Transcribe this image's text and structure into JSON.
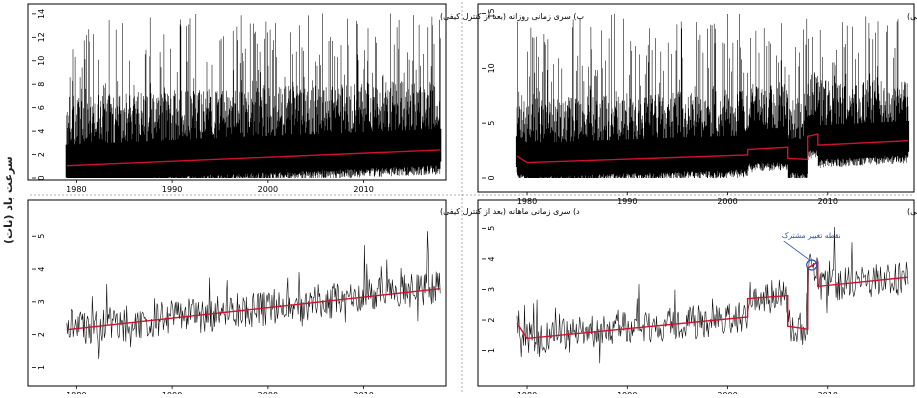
{
  "figure": {
    "ylabel": "سرعت باد (نات)"
  },
  "chart_data": [
    {
      "id": "b",
      "type": "line",
      "title": "ب) سری زمانی روزانه (بعد از کنترل کیفی)",
      "xlim": [
        1978.5,
        2018.5
      ],
      "ylim": [
        0,
        14.5
      ],
      "xticks": [
        1980,
        1990,
        2000,
        2010
      ],
      "yticks": [
        0,
        2,
        4,
        6,
        8,
        10,
        12,
        14
      ],
      "series": [
        {
          "kind": "daily",
          "color": "#000000",
          "x": [
            1979,
            2018
          ],
          "base_mean": 1.1,
          "base_end": 2.4,
          "y_max": 14.2
        },
        {
          "kind": "trend",
          "color": "#d01030",
          "x": [
            1979,
            2018
          ],
          "y": [
            1.05,
            2.4
          ]
        }
      ],
      "annotations": []
    },
    {
      "id": "alef",
      "type": "line",
      "title": "الف) سری زمانی روزانه (قبل از کنترل کیفی)",
      "xlim": [
        1978.5,
        2018.5
      ],
      "ylim": [
        0,
        15.5
      ],
      "xticks": [
        1980,
        1990,
        2000,
        2010
      ],
      "yticks": [
        0,
        5,
        10,
        15
      ],
      "series": [
        {
          "kind": "daily",
          "color": "#000000",
          "x": [
            1979,
            2018
          ],
          "y_max": 15
        },
        {
          "kind": "trend",
          "color": "#d01030",
          "x": [
            1979,
            1980,
            1980,
            2002,
            2002,
            2006,
            2006,
            2008,
            2008,
            2009,
            2009,
            2018
          ],
          "y": [
            2.0,
            1.4,
            1.4,
            2.1,
            2.6,
            2.8,
            1.8,
            1.7,
            3.8,
            4.0,
            3.0,
            3.4
          ]
        }
      ],
      "annotations": []
    },
    {
      "id": "dal",
      "type": "line",
      "title": "د) سری زمانی ماهانه (بعد از کنترل کیفی)",
      "xlim": [
        1978.5,
        2018.5
      ],
      "ylim": [
        0.8,
        5.8
      ],
      "xticks": [
        1980,
        1990,
        2000,
        2010
      ],
      "yticks": [
        1,
        2,
        3,
        4,
        5
      ],
      "series": [
        {
          "kind": "monthly",
          "color": "#000000",
          "x": [
            1979,
            2018
          ]
        },
        {
          "kind": "trend",
          "color": "#d01030",
          "x": [
            1979,
            2018
          ],
          "y": [
            2.15,
            3.4
          ]
        }
      ],
      "annotations": []
    },
    {
      "id": "jim",
      "type": "line",
      "title": "ج) سری زمانی ماهانه (قبل از کنترل کیفی)",
      "xlim": [
        1978.5,
        2018.5
      ],
      "ylim": [
        0.3,
        5.6
      ],
      "xticks": [
        1980,
        1990,
        2000,
        2010
      ],
      "yticks": [
        1,
        2,
        3,
        4,
        5
      ],
      "series": [
        {
          "kind": "monthly",
          "color": "#000000",
          "x": [
            1979,
            2018
          ]
        },
        {
          "kind": "trend",
          "color": "#d01030",
          "x": [
            1979,
            1980,
            1980,
            2002,
            2002,
            2006,
            2006,
            2008,
            2008,
            2009,
            2009,
            2018
          ],
          "y": [
            1.9,
            1.4,
            1.4,
            2.1,
            2.7,
            2.8,
            1.8,
            1.7,
            3.7,
            3.9,
            3.1,
            3.4
          ]
        }
      ],
      "annotations": [
        {
          "text": "نقطه تغییر مشترک",
          "x": 2008.4,
          "y": 3.8,
          "color": "#2a4fa8"
        }
      ]
    }
  ]
}
